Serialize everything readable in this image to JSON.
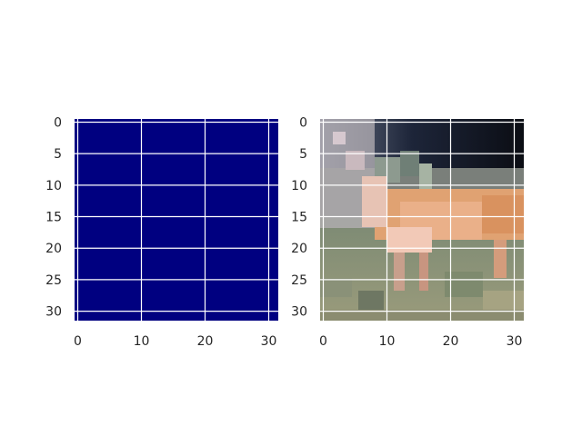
{
  "chart_data": [
    {
      "type": "heatmap",
      "title": "",
      "xlabel": "",
      "ylabel": "",
      "xlim": [
        -0.5,
        31.5
      ],
      "ylim": [
        31.5,
        -0.5
      ],
      "x_ticks": [
        0,
        10,
        20,
        30
      ],
      "y_ticks": [
        0,
        5,
        10,
        15,
        20,
        25,
        30
      ],
      "grid": true,
      "fill_color": "#000080",
      "values": "uniform single value across 32x32 grid"
    },
    {
      "type": "heatmap",
      "title": "",
      "xlabel": "",
      "ylabel": "",
      "xlim": [
        -0.5,
        31.5
      ],
      "ylim": [
        31.5,
        -0.5
      ],
      "x_ticks": [
        0,
        10,
        20,
        30
      ],
      "y_ticks": [
        0,
        5,
        10,
        15,
        20,
        25,
        30
      ],
      "grid": true,
      "content": "32x32 RGB photograph"
    }
  ],
  "style": {
    "grid_color": "#ffffff",
    "tick_label_color": "#262626"
  }
}
